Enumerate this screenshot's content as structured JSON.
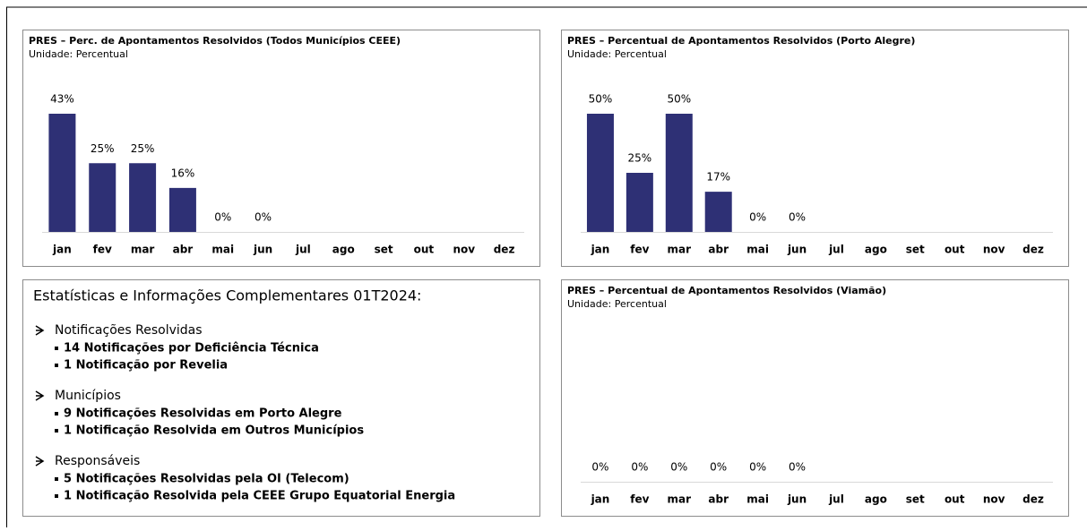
{
  "chart_data": [
    {
      "type": "bar",
      "title": "PRES – Perc. de Apontamentos Resolvidos (Todos Municípios CEEE)",
      "subtitle": "Unidade: Percentual",
      "categories": [
        "jan",
        "fev",
        "mar",
        "abr",
        "mai",
        "jun",
        "jul",
        "ago",
        "set",
        "out",
        "nov",
        "dez"
      ],
      "values": [
        43,
        25,
        25,
        16,
        0,
        0,
        null,
        null,
        null,
        null,
        null,
        null
      ],
      "value_labels": [
        "43%",
        "25%",
        "25%",
        "16%",
        "0%",
        "0%",
        null,
        null,
        null,
        null,
        null,
        null
      ],
      "color": "#2e3075"
    },
    {
      "type": "bar",
      "title": "PRES – Percentual de Apontamentos Resolvidos (Porto Alegre)",
      "subtitle": "Unidade: Percentual",
      "categories": [
        "jan",
        "fev",
        "mar",
        "abr",
        "mai",
        "jun",
        "jul",
        "ago",
        "set",
        "out",
        "nov",
        "dez"
      ],
      "values": [
        50,
        25,
        50,
        17,
        0,
        0,
        null,
        null,
        null,
        null,
        null,
        null
      ],
      "value_labels": [
        "50%",
        "25%",
        "50%",
        "17%",
        "0%",
        "0%",
        null,
        null,
        null,
        null,
        null,
        null
      ],
      "color": "#2e3075"
    },
    {
      "type": "bar",
      "title": "PRES – Percentual de Apontamentos Resolvidos (Viamão)",
      "subtitle": "Unidade: Percentual",
      "categories": [
        "jan",
        "fev",
        "mar",
        "abr",
        "mai",
        "jun",
        "jul",
        "ago",
        "set",
        "out",
        "nov",
        "dez"
      ],
      "values": [
        0,
        0,
        0,
        0,
        0,
        0,
        null,
        null,
        null,
        null,
        null,
        null
      ],
      "value_labels": [
        "0%",
        "0%",
        "0%",
        "0%",
        "0%",
        "0%",
        null,
        null,
        null,
        null,
        null,
        null
      ],
      "color": "#2e3075"
    }
  ],
  "info_panel": {
    "title": "Estatísticas e Informações Complementares 01T2024:",
    "sections": [
      {
        "heading": "Notificações Resolvidas",
        "items": [
          "14 Notificações por Deficiência Técnica",
          "1 Notificação por Revelia"
        ]
      },
      {
        "heading": "Municípios",
        "items": [
          "9 Notificações Resolvidas em Porto Alegre",
          "1 Notificação Resolvida em Outros Municípios"
        ]
      },
      {
        "heading": "Responsáveis",
        "items": [
          "5 Notificações Resolvidas pela OI (Telecom)",
          "1 Notificação Resolvida pela CEEE Grupo Equatorial Energia"
        ]
      }
    ]
  }
}
